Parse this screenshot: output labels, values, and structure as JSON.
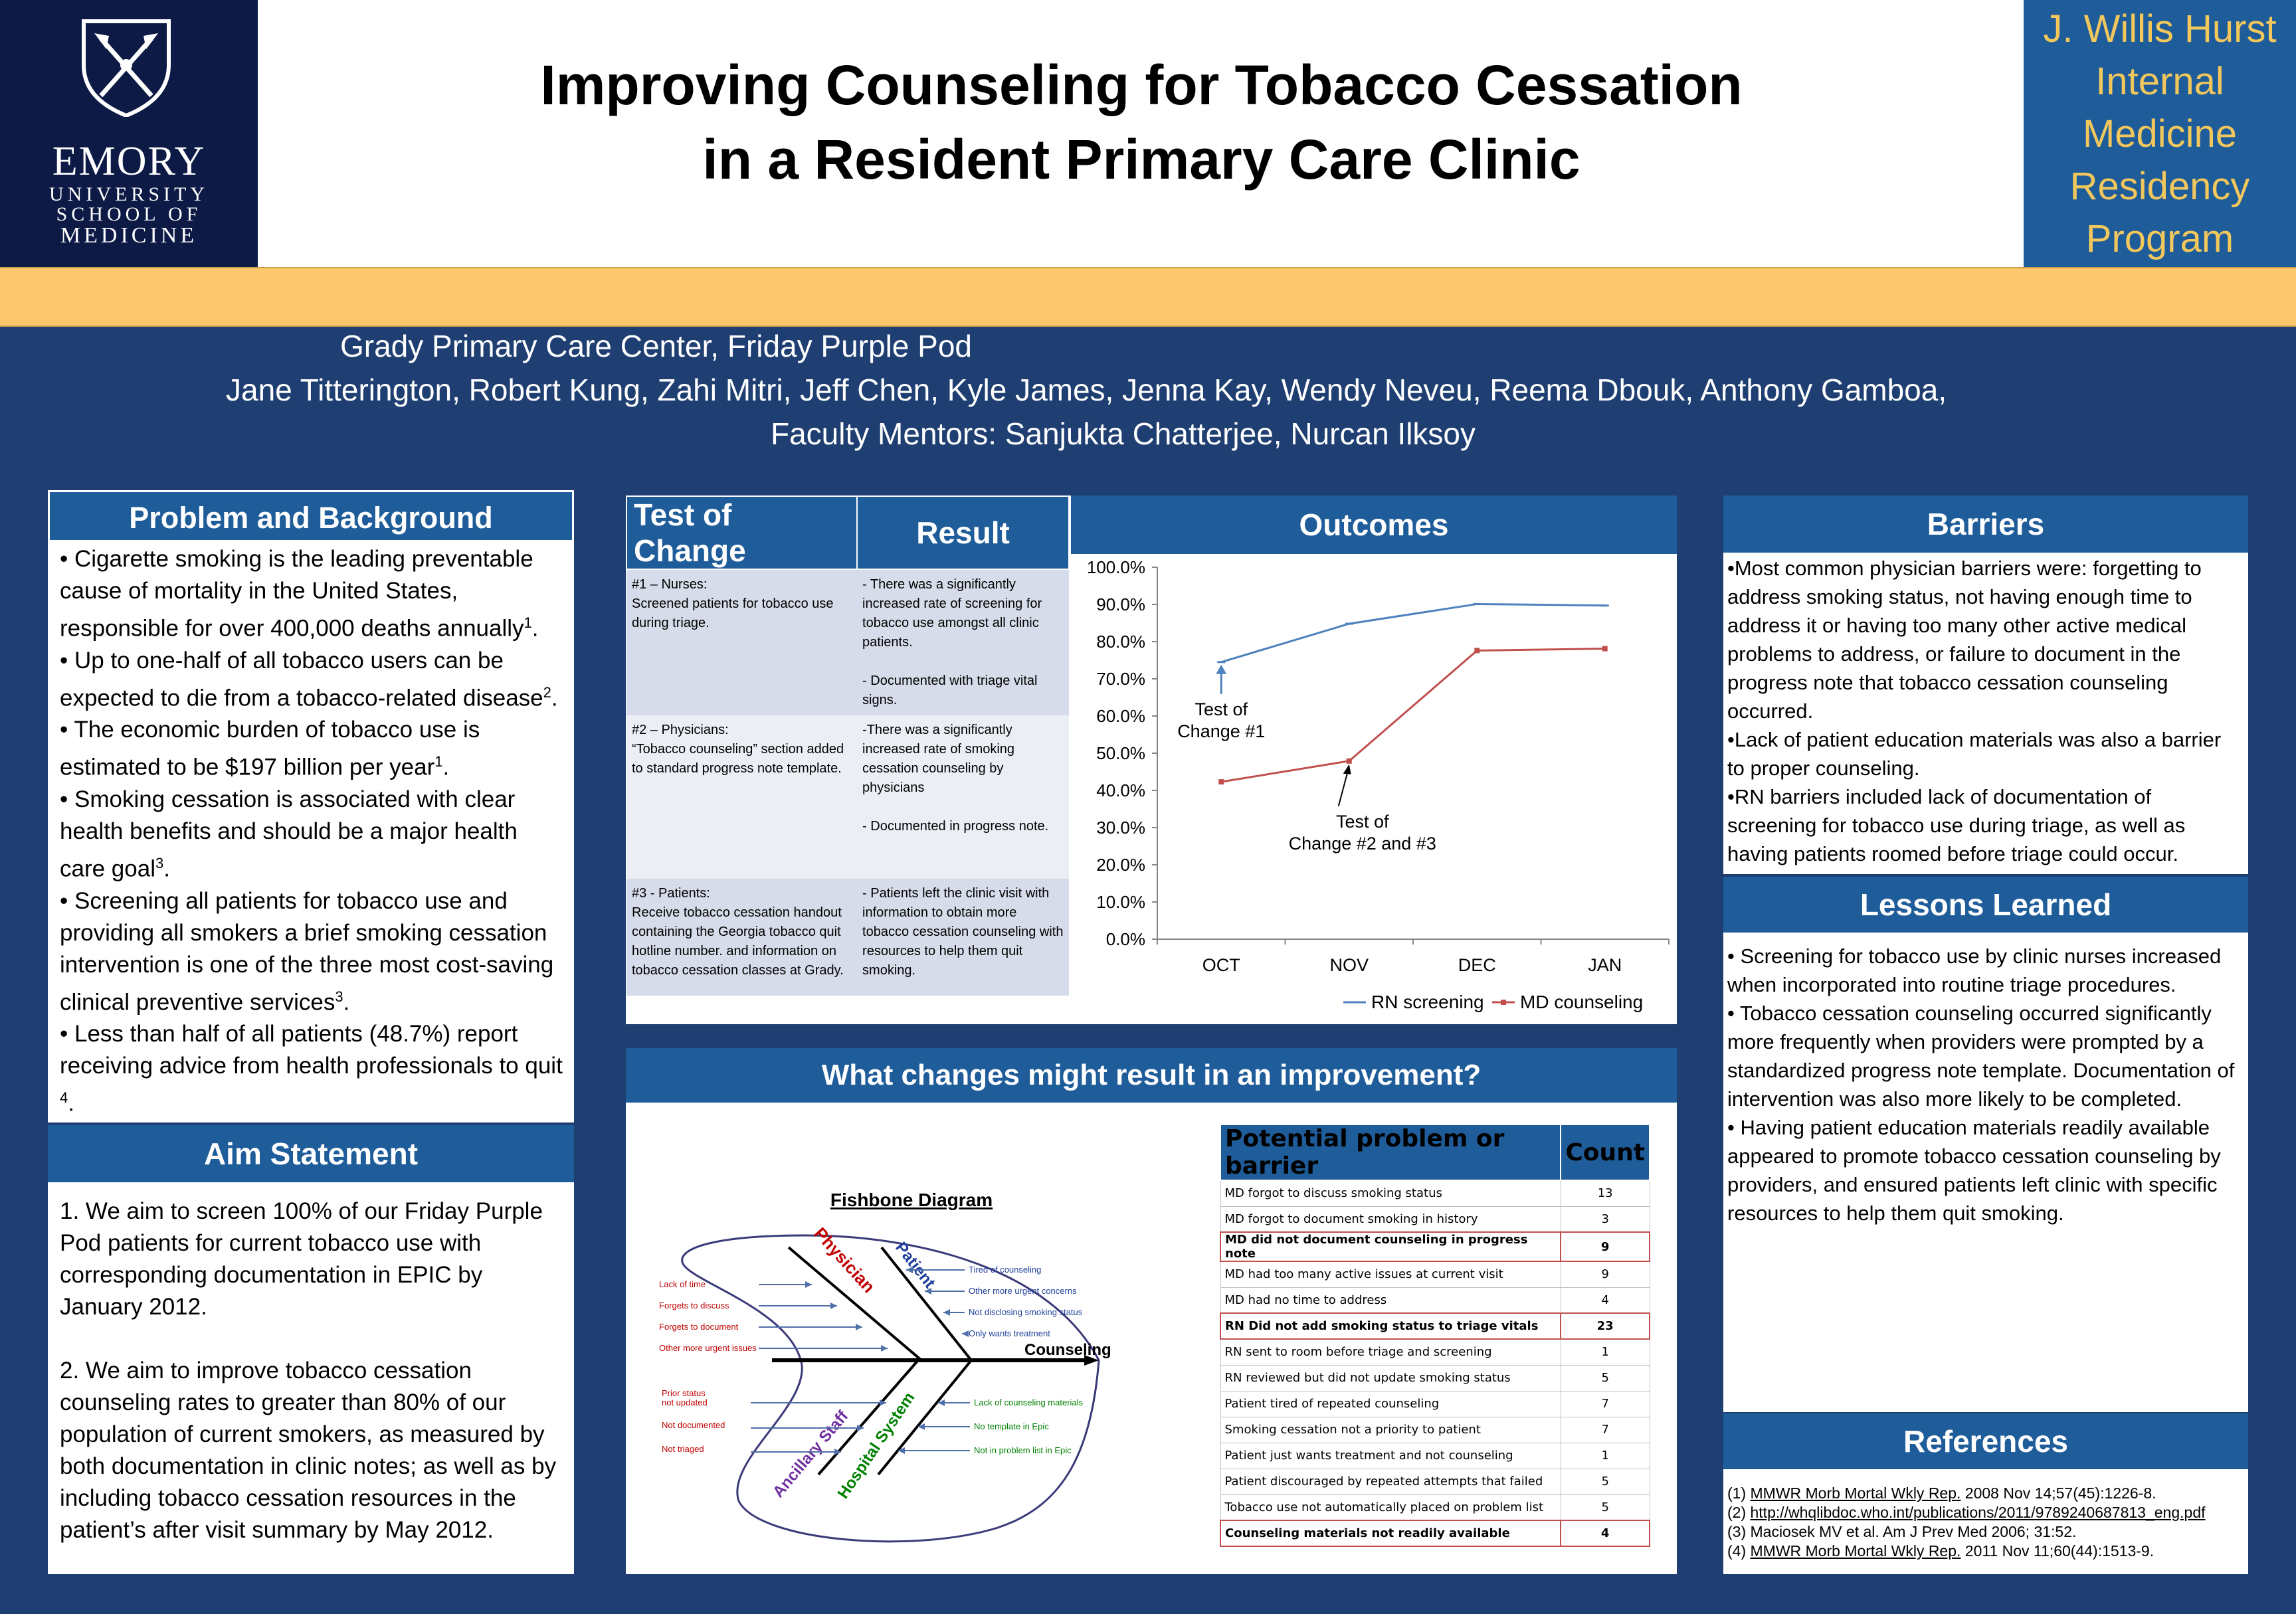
{
  "header": {
    "logo": {
      "name": "EMORY",
      "line1": "UNIVERSITY",
      "line2": "SCHOOL OF",
      "line3": "MEDICINE"
    },
    "title_line1": "Improving Counseling for Tobacco Cessation",
    "title_line2": "in a  Resident Primary Care Clinic",
    "program": [
      "J. Willis Hurst",
      "Internal",
      "Medicine",
      "Residency",
      "Program"
    ]
  },
  "byline": {
    "location": "Grady Primary Care Center, Friday Purple Pod",
    "authors": "Jane Titterington, Robert Kung, Zahi Mitri, Jeff Chen, Kyle James, Jenna Kay, Wendy Neveu, Reema Dbouk, Anthony Gamboa,",
    "mentors": "Faculty Mentors: Sanjukta Chatterjee, Nurcan Ilksoy"
  },
  "problem": {
    "title": "Problem and Background",
    "b1": "• Cigarette smoking is the leading preventable cause of mortality in the United States, responsible for over 400,000 deaths annually",
    "b1_ref": "1",
    "b2": "• Up to one-half of all tobacco users can be expected to die from a tobacco-related disease",
    "b2_ref": "2",
    "b3": "• The economic burden of tobacco use is estimated to be $197 billion per year",
    "b3_ref": "1",
    "b4": "• Smoking cessation is associated with clear health benefits and should be a major health care goal",
    "b4_ref": "3",
    "b5": "• Screening all patients for tobacco use and providing all smokers a brief smoking cessation intervention is one of the three most cost-saving clinical preventive services",
    "b5_ref": "3",
    "b6": "• Less than half of all patients (48.7%) report receiving advice from health professionals to quit ",
    "b6_ref": "4"
  },
  "aim": {
    "title": "Aim Statement",
    "p1": "1. We aim to screen 100% of our Friday Purple Pod patients for current tobacco use with corresponding documentation in EPIC by January 2012.",
    "p2": "2. We aim to improve tobacco cessation counseling rates to greater than 80% of our population of current smokers, as measured by both documentation in clinic notes; as well as by including tobacco cessation resources in the patient’s after visit summary by May 2012."
  },
  "test_of_change": {
    "head_test": "Test of Change",
    "head_result": "Result",
    "rows": [
      {
        "test": "#1 – Nurses:\nScreened patients for tobacco use during triage.",
        "result": "- There was a significantly increased rate of screening for tobacco use amongst all clinic patients.\n\n- Documented with triage vital signs."
      },
      {
        "test": "#2 – Physicians:\n“Tobacco counseling” section added to standard progress note template.",
        "result": "-There was a significantly increased rate of smoking cessation counseling by physicians\n\n- Documented in progress note."
      },
      {
        "test": "#3 - Patients:\nReceive tobacco cessation handout containing the Georgia tobacco quit hotline number. and information on tobacco cessation classes at Grady.",
        "result": "- Patients left the clinic visit with information to obtain more tobacco cessation counseling with resources to help them quit smoking."
      }
    ]
  },
  "outcomes": {
    "title": "Outcomes",
    "annotation1": [
      "Test of",
      "Change #1"
    ],
    "annotation2": [
      "Test of",
      "Change #2 and #3"
    ]
  },
  "chart_data": {
    "type": "line",
    "categories": [
      "OCT",
      "NOV",
      "DEC",
      "JAN"
    ],
    "series": [
      {
        "name": "RN screening",
        "values": [
          74.5,
          84.8,
          90.1,
          89.7
        ],
        "color": "#4f81bd"
      },
      {
        "name": "MD counseling",
        "values": [
          42.3,
          47.9,
          77.6,
          78.1
        ],
        "color": "#c0504d"
      }
    ],
    "ylim": [
      0,
      100
    ],
    "yticks": [
      "0.0%",
      "10.0%",
      "20.0%",
      "30.0%",
      "40.0%",
      "50.0%",
      "60.0%",
      "70.0%",
      "80.0%",
      "90.0%",
      "100.0%"
    ],
    "legend": "bottom",
    "grid": false
  },
  "barriers": {
    "title": "Barriers",
    "b1": "•Most common physician barriers were: forgetting to address smoking status, not having enough time to address it or having too many other active medical problems to address, or failure to document in the progress note that tobacco cessation counseling occurred.",
    "b2": "•Lack of patient education materials was also a barrier to proper counseling.",
    "b3": "•RN barriers included lack of documentation of screening for tobacco use during triage, as well as having patients roomed before triage could occur."
  },
  "lessons": {
    "title": "Lessons Learned",
    "b1": "• Screening for tobacco use by clinic nurses increased when incorporated into routine triage procedures.",
    "b2": "• Tobacco cessation counseling occurred significantly more frequently when providers were prompted by a standardized progress note template. Documentation of intervention was also more likely to be completed.",
    "b3": "• Having patient education materials readily available appeared to promote tobacco cessation counseling by providers, and ensured patients left clinic with specific resources to help them quit smoking."
  },
  "references": {
    "title": "References",
    "r1_pre": "(1) ",
    "r1_link": "MMWR Morb Mortal Wkly Rep.",
    "r1_post": " 2008 Nov 14;57(45):1226-8.",
    "r2_pre": "(2) ",
    "r2_link": "http://whqlibdoc.who.int/publications/2011/9789240687813_eng.pdf",
    "r3": "(3) Maciosek MV et al. Am J Prev Med 2006; 31:52.",
    "r4_pre": "(4) ",
    "r4_link": "MMWR Morb Mortal Wkly Rep.",
    "r4_post": " 2011 Nov 11;60(44):1513-9."
  },
  "improvement": {
    "title": "What changes might result in an improvement?",
    "fishbone": {
      "title": "Fishbone Diagram",
      "head": "Counseling",
      "physician": "Physician",
      "patient": "Patient",
      "ancillary": "Ancillary Staff",
      "system": "Hospital System",
      "physician_causes": [
        "Lack of time",
        "Forgets to discuss",
        "Forgets to document",
        "Other more urgent issues"
      ],
      "patient_causes": [
        "Tired of counseling",
        "Other more urgent concerns",
        "Not disclosing smoking status",
        "Only wants treatment"
      ],
      "ancillary_causes": [
        "Prior status\nnot updated",
        "Not documented",
        "Not triaged"
      ],
      "system_causes": [
        "Lack of counseling materials",
        "No template in Epic",
        "Not in problem list in Epic"
      ]
    },
    "table": {
      "head_problem": "Potential problem or barrier",
      "head_count": "Count",
      "rows": [
        {
          "problem": "MD forgot to discuss smoking status",
          "count": "13",
          "bold": false
        },
        {
          "problem": "MD forgot to document smoking in history",
          "count": "3",
          "bold": false
        },
        {
          "problem": "MD did not document counseling in progress note",
          "count": "9",
          "bold": true
        },
        {
          "problem": "MD had too many active issues at current visit",
          "count": "9",
          "bold": false
        },
        {
          "problem": "MD had no time to address",
          "count": "4",
          "bold": false
        },
        {
          "problem": "RN Did not add smoking status to triage vitals",
          "count": "23",
          "bold": true
        },
        {
          "problem": "RN sent to room before triage and screening",
          "count": "1",
          "bold": false
        },
        {
          "problem": "RN reviewed but did not update smoking status",
          "count": "5",
          "bold": false
        },
        {
          "problem": "Patient tired of repeated counseling",
          "count": "7",
          "bold": false
        },
        {
          "problem": "Smoking cessation not a priority to patient",
          "count": "7",
          "bold": false
        },
        {
          "problem": "Patient just wants treatment and not counseling",
          "count": "1",
          "bold": false
        },
        {
          "problem": "Patient discouraged by repeated attempts that failed",
          "count": "5",
          "bold": false
        },
        {
          "problem": "Tobacco use not automatically placed on problem list",
          "count": "5",
          "bold": false
        },
        {
          "problem": "Counseling materials not readily available",
          "count": "4",
          "bold": true
        }
      ]
    }
  }
}
